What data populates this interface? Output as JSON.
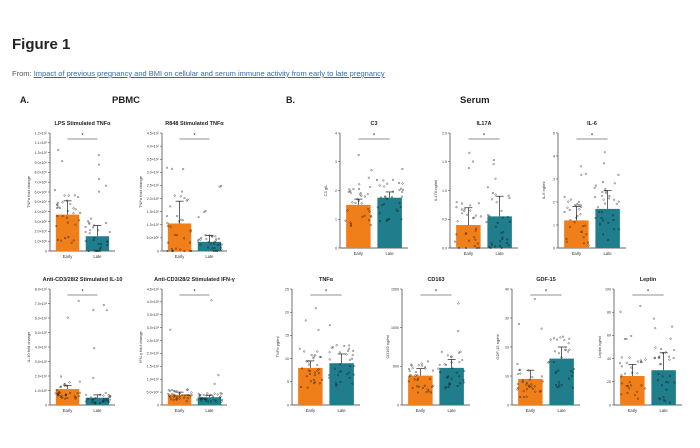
{
  "figure": {
    "title": "Figure 1",
    "from_prefix": "From:",
    "from_link": "Impact of previous pregnancy and BMI on cellular and serum immune activity from early to late pregnancy"
  },
  "panels": {
    "a_label": "A.",
    "b_label": "B.",
    "pbmc_title": "PBMC",
    "serum_title": "Serum"
  },
  "colors": {
    "early": "#f07f1a",
    "late": "#1f7d8c",
    "error": "#222222"
  },
  "chart_data": [
    {
      "type": "bar",
      "panel": "A",
      "title": "LPS Stimulated TNFα",
      "ylabel": "TNFα fold change",
      "categories": [
        "Early",
        "Late"
      ],
      "values": [
        3.7,
        1.5
      ],
      "error": [
        1.4,
        1.1
      ],
      "ylim": [
        0,
        12
      ],
      "ytick_labels": [
        "0",
        "1.0×10⁰",
        "2.0×10⁰",
        "3.0×10⁰",
        "4.0×10⁰",
        "5.0×10⁰",
        "6.0×10⁰",
        "7.0×10⁰",
        "8.0×10⁰",
        "9.0×10⁰",
        "1.0×10¹",
        "1.1×10¹",
        "1.2×10¹"
      ],
      "significance": "*"
    },
    {
      "type": "bar",
      "panel": "A",
      "title": "R848 Stimulated TNFα",
      "ylabel": "TNFα fold change",
      "categories": [
        "Early",
        "Late"
      ],
      "values": [
        10.5,
        3.5
      ],
      "error": [
        8.5,
        2.5
      ],
      "ylim": [
        0,
        45
      ],
      "ytick_labels": [
        "0",
        "5.0×10⁰",
        "1.0×10¹",
        "1.5×10¹",
        "2.0×10¹",
        "2.5×10¹",
        "3.0×10¹",
        "3.5×10¹",
        "4.0×10¹",
        "4.5×10¹"
      ],
      "significance": "*"
    },
    {
      "type": "bar",
      "panel": "A",
      "title": "Anti-CD3/28/2 Stimulated IL-10",
      "ylabel": "IL-10 fold change",
      "categories": [
        "Early",
        "Late"
      ],
      "values": [
        11,
        5
      ],
      "error": [
        2.5,
        2
      ],
      "ylim": [
        0,
        80
      ],
      "ytick_labels": [
        "0",
        "1.0×10¹",
        "2.0×10¹",
        "3.0×10¹",
        "4.0×10¹",
        "5.0×10¹",
        "6.0×10¹",
        "7.0×10¹",
        "8.0×10¹"
      ],
      "significance": "*"
    },
    {
      "type": "bar",
      "panel": "A",
      "title": "Anti-CD3/28/2 Stimulated IFN-γ",
      "ylabel": "IFN-γ fold change",
      "categories": [
        "Early",
        "Late"
      ],
      "values": [
        4,
        3
      ],
      "error": [
        1,
        0.8
      ],
      "ylim": [
        0,
        45
      ],
      "ytick_labels": [
        "0",
        "5.0×10⁰",
        "1.0×10¹",
        "1.5×10¹",
        "2.0×10¹",
        "2.5×10¹",
        "3.0×10¹",
        "3.5×10¹",
        "4.0×10¹",
        "4.5×10¹"
      ],
      "significance": "*"
    },
    {
      "type": "bar",
      "panel": "B",
      "title": "C3",
      "ylabel": "C3 g/L",
      "categories": [
        "Early",
        "Late"
      ],
      "values": [
        1.5,
        1.75
      ],
      "error": [
        0.2,
        0.2
      ],
      "ylim": [
        0,
        4
      ],
      "ytick_labels": [
        "0",
        "1",
        "2",
        "3",
        "4"
      ],
      "significance": "*"
    },
    {
      "type": "bar",
      "panel": "B",
      "title": "IL17A",
      "ylabel": "IL17A ng/ml",
      "categories": [
        "Early",
        "Late"
      ],
      "values": [
        0.4,
        0.55
      ],
      "error": [
        0.3,
        0.35
      ],
      "ylim": [
        0,
        2
      ],
      "ytick_labels": [
        "0.0",
        "0.5",
        "1.0",
        "1.5",
        "2.0"
      ],
      "significance": "*"
    },
    {
      "type": "bar",
      "panel": "B",
      "title": "IL-6",
      "ylabel": "IL-6 ng/ml",
      "categories": [
        "Early",
        "Late"
      ],
      "values": [
        1.2,
        1.7
      ],
      "error": [
        0.6,
        0.8
      ],
      "ylim": [
        0,
        5
      ],
      "ytick_labels": [
        "0",
        "1",
        "2",
        "3",
        "4",
        "5"
      ],
      "significance": "*"
    },
    {
      "type": "bar",
      "panel": "B",
      "title": "TNFα",
      "ylabel": "TNFα pg/ml",
      "categories": [
        "Early",
        "Late"
      ],
      "values": [
        8,
        9
      ],
      "error": [
        1.5,
        2
      ],
      "ylim": [
        0,
        25
      ],
      "ytick_labels": [
        "0",
        "5",
        "10",
        "15",
        "20",
        "25"
      ],
      "significance": "*"
    },
    {
      "type": "bar",
      "panel": "B",
      "title": "CD163",
      "ylabel": "CD163 ng/ml",
      "categories": [
        "Early",
        "Late"
      ],
      "values": [
        380,
        480
      ],
      "error": [
        90,
        110
      ],
      "ylim": [
        0,
        1500
      ],
      "ytick_labels": [
        "0",
        "500",
        "1000",
        "1500"
      ],
      "significance": "*"
    },
    {
      "type": "bar",
      "panel": "B",
      "title": "GDF-15",
      "ylabel": "GDF-15 ng/ml",
      "categories": [
        "Early",
        "Late"
      ],
      "values": [
        9,
        16
      ],
      "error": [
        3,
        4
      ],
      "ylim": [
        0,
        40
      ],
      "ytick_labels": [
        "0",
        "10",
        "20",
        "30",
        "40"
      ],
      "significance": "*"
    },
    {
      "type": "bar",
      "panel": "B",
      "title": "Leptin",
      "ylabel": "Leptin ng/ml",
      "categories": [
        "Early",
        "Late"
      ],
      "values": [
        25,
        30
      ],
      "error": [
        10,
        15
      ],
      "ylim": [
        0,
        100
      ],
      "ytick_labels": [
        "0",
        "20",
        "40",
        "60",
        "80",
        "100"
      ],
      "significance": "*"
    }
  ]
}
